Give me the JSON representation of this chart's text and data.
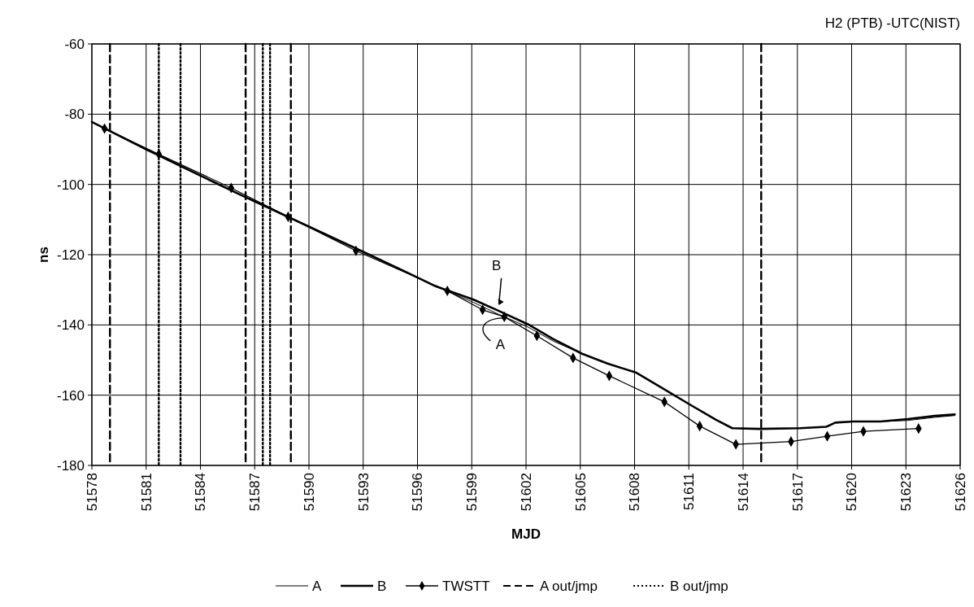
{
  "chart_data": {
    "type": "line",
    "title": "H2 (PTB) -UTC(NIST)",
    "xlabel": "MJD",
    "ylabel": "ns",
    "xlim": [
      51578,
      51626
    ],
    "xticks": [
      51578,
      51581,
      51584,
      51587,
      51590,
      51593,
      51596,
      51599,
      51602,
      51605,
      51608,
      51611,
      51614,
      51617,
      51620,
      51623,
      51626
    ],
    "ylim": [
      -180,
      -60
    ],
    "yticks": [
      -180,
      -160,
      -140,
      -120,
      -100,
      -80,
      -60
    ],
    "grid": true,
    "legend": "bottom",
    "annotations": [
      {
        "text": "B",
        "x": 51600.5,
        "y": -135.5
      },
      {
        "text": "A",
        "x": 51600.8,
        "y": -137.6
      }
    ],
    "series": [
      {
        "name": "A",
        "color": "#000000",
        "line_style": "solid",
        "marker": "none",
        "x": [
          51578,
          51581,
          51584,
          51586.4,
          51590,
          51593,
          51595.4,
          51597,
          51599.1,
          51600.5,
          51602.1,
          51603.5,
          51605.1,
          51606.5,
          51608.1,
          51609.6,
          51611.1,
          51612.5,
          51613.4,
          51614.9,
          51617.15,
          51618.6,
          51619.1,
          51620.1,
          51621.6,
          51623.1,
          51624.6,
          51625.7
        ],
        "values": [
          -82.2,
          -90.0,
          -97.5,
          -103.4,
          -112.0,
          -119.2,
          -125.0,
          -129.0,
          -133.6,
          -137.0,
          -140.6,
          -144.6,
          -148.2,
          -151.0,
          -153.6,
          -158.2,
          -162.8,
          -167.0,
          -169.4,
          -169.6,
          -169.4,
          -169.0,
          -167.8,
          -167.5,
          -167.5,
          -167.2,
          -166.3,
          -165.8
        ]
      },
      {
        "name": "B",
        "color": "#000000",
        "line_style": "solid",
        "marker": "none",
        "x": [
          51578,
          51581,
          51584,
          51586.4,
          51590,
          51593,
          51595.4,
          51597,
          51599.1,
          51600.5,
          51602.1,
          51603.5,
          51605.1,
          51606.5,
          51608.1,
          51609.6,
          51611.1,
          51612.5,
          51613.4,
          51614.9,
          51617.15,
          51618.6,
          51619.1,
          51620.1,
          51621.6,
          51623.1,
          51624.6,
          51625.7
        ],
        "values": [
          -82.2,
          -90.0,
          -97.5,
          -103.4,
          -112.0,
          -119.2,
          -125.0,
          -129.0,
          -132.8,
          -136.0,
          -139.8,
          -144.0,
          -148.2,
          -151.0,
          -153.6,
          -158.2,
          -162.8,
          -167.0,
          -169.4,
          -169.6,
          -169.4,
          -169.0,
          -167.8,
          -167.5,
          -167.5,
          -166.8,
          -165.9,
          -165.5
        ]
      },
      {
        "name": "TWSTT",
        "color": "#000000",
        "line_style": "solid",
        "marker": "diamond",
        "x": [
          51578.7,
          51581.7,
          51585.7,
          51588.85,
          51592.6,
          51597.65,
          51599.6,
          51600.8,
          51602.6,
          51604.6,
          51606.6,
          51609.65,
          51611.6,
          51613.6,
          51616.65,
          51618.65,
          51620.65,
          51623.7
        ],
        "values": [
          -84.1,
          -91.4,
          -101.0,
          -109.2,
          -118.9,
          -130.3,
          -135.7,
          -137.7,
          -143.1,
          -149.4,
          -154.5,
          -161.9,
          -168.8,
          -174.0,
          -173.2,
          -171.7,
          -170.3,
          -169.5
        ]
      },
      {
        "name": "A out/jmp",
        "color": "#000000",
        "line_style": "dashed",
        "marker": "none",
        "x": [
          51579,
          51579,
          null,
          51586.5,
          51586.5,
          null,
          51589,
          51589,
          null,
          51615,
          51615
        ],
        "values": [
          -60,
          -180,
          null,
          -60,
          -180,
          null,
          -60,
          -180,
          null,
          -60,
          -180
        ]
      },
      {
        "name": "B out/jmp",
        "color": "#000000",
        "line_style": "dotted",
        "marker": "none",
        "x": [
          51581.7,
          51581.7,
          null,
          51582.9,
          51582.9,
          null,
          51587.45,
          51587.45,
          null,
          51587.85,
          51587.85
        ],
        "values": [
          -60,
          -180,
          null,
          -60,
          -180,
          null,
          -60,
          -180,
          null,
          -60,
          -180
        ]
      }
    ]
  }
}
